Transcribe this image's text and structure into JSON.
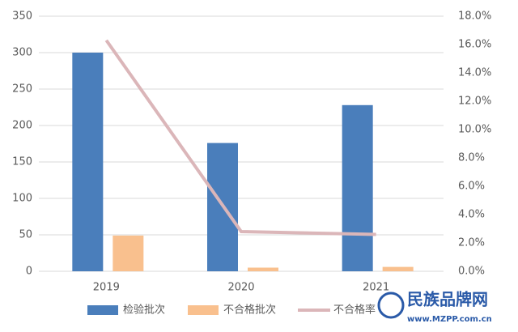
{
  "chart_data": {
    "type": "bar+line",
    "categories": [
      "2019",
      "2020",
      "2021"
    ],
    "series": [
      {
        "name": "检验批次",
        "type": "bar",
        "color": "#4a7ebb",
        "values": [
          300,
          176,
          228
        ]
      },
      {
        "name": "不合格批次",
        "type": "bar",
        "color": "#f9c08e",
        "values": [
          49,
          5,
          6
        ]
      },
      {
        "name": "不合格率",
        "type": "line",
        "axis": "y2",
        "color": "#dbb6b9",
        "values": [
          16.3,
          2.8,
          2.6
        ]
      }
    ],
    "ylim": [
      0,
      350
    ],
    "yticks": [
      0,
      50,
      100,
      150,
      200,
      250,
      300,
      350
    ],
    "y2lim": [
      0,
      18
    ],
    "y2ticks": [
      {
        "value": 0,
        "label": "0.0%"
      },
      {
        "value": 2,
        "label": "2.0%"
      },
      {
        "value": 4,
        "label": "4.0%"
      },
      {
        "value": 6,
        "label": "6.0%"
      },
      {
        "value": 8,
        "label": "8.0%"
      },
      {
        "value": 10,
        "label": "10.0%"
      },
      {
        "value": 12,
        "label": "12.0%"
      },
      {
        "value": 14,
        "label": "14.0%"
      },
      {
        "value": 16,
        "label": "16.0%"
      },
      {
        "value": 18,
        "label": "18.0%"
      }
    ],
    "grid": true,
    "legend": "bottom"
  },
  "watermark": {
    "title": "民族品牌网",
    "url": "www.MZPP.com.cn"
  }
}
